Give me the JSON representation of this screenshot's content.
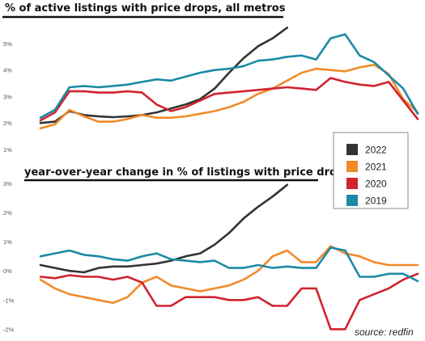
{
  "chart_data": [
    {
      "type": "line",
      "title": "% of active listings with price drops, all metros",
      "yticks": [
        "1%",
        "2%",
        "3%",
        "4%",
        "5%"
      ],
      "ylim": [
        1,
        5.7
      ],
      "xlim": [
        0,
        52
      ],
      "series": [
        {
          "name": "2022",
          "color": "#333333",
          "x": [
            0,
            2,
            4,
            6,
            8,
            10,
            12,
            14,
            16,
            18,
            20,
            22,
            24,
            26,
            28,
            30,
            32,
            34
          ],
          "y": [
            2.0,
            2.05,
            2.45,
            2.3,
            2.25,
            2.22,
            2.25,
            2.3,
            2.4,
            2.55,
            2.7,
            2.9,
            3.3,
            3.9,
            4.45,
            4.9,
            5.2,
            5.6
          ]
        },
        {
          "name": "2021",
          "color": "#f28a2a",
          "x": [
            0,
            2,
            4,
            6,
            8,
            10,
            12,
            14,
            16,
            18,
            20,
            22,
            24,
            26,
            28,
            30,
            32,
            34,
            36,
            38,
            40,
            42,
            44,
            46,
            48,
            50,
            52
          ],
          "y": [
            1.8,
            1.95,
            2.5,
            2.25,
            2.05,
            2.05,
            2.15,
            2.3,
            2.2,
            2.2,
            2.25,
            2.35,
            2.45,
            2.6,
            2.8,
            3.1,
            3.3,
            3.6,
            3.9,
            4.05,
            4.0,
            3.95,
            4.1,
            4.2,
            3.85,
            2.9,
            2.4
          ]
        },
        {
          "name": "2020",
          "color": "#d0232d",
          "x": [
            0,
            2,
            4,
            6,
            8,
            10,
            12,
            14,
            16,
            18,
            20,
            22,
            24,
            26,
            28,
            30,
            32,
            34,
            36,
            38,
            40,
            42,
            44,
            46,
            48,
            50,
            52
          ],
          "y": [
            2.1,
            2.4,
            3.2,
            3.2,
            3.15,
            3.15,
            3.2,
            3.15,
            2.7,
            2.45,
            2.6,
            2.85,
            3.1,
            3.15,
            3.2,
            3.25,
            3.3,
            3.35,
            3.3,
            3.25,
            3.7,
            3.55,
            3.45,
            3.4,
            3.55,
            2.85,
            2.15
          ]
        },
        {
          "name": "2019",
          "color": "#1b8aa6",
          "x": [
            0,
            2,
            4,
            6,
            8,
            10,
            12,
            14,
            16,
            18,
            20,
            22,
            24,
            26,
            28,
            30,
            32,
            34,
            36,
            38,
            40,
            42,
            44,
            46,
            48,
            50,
            52
          ],
          "y": [
            2.2,
            2.5,
            3.35,
            3.4,
            3.35,
            3.4,
            3.45,
            3.55,
            3.65,
            3.6,
            3.75,
            3.9,
            4.0,
            4.05,
            4.15,
            4.35,
            4.4,
            4.5,
            4.55,
            4.4,
            5.2,
            5.35,
            4.55,
            4.3,
            3.8,
            3.3,
            2.35
          ]
        }
      ]
    },
    {
      "type": "line",
      "title": "year-over-year change in % of listings with price drops",
      "yticks": [
        "-2%",
        "-1%",
        "0%",
        "1%",
        "2%",
        "3%"
      ],
      "ylim": [
        -2.1,
        3.0
      ],
      "xlim": [
        0,
        52
      ],
      "series": [
        {
          "name": "2022",
          "color": "#333333",
          "x": [
            0,
            2,
            4,
            6,
            8,
            10,
            12,
            14,
            16,
            18,
            20,
            22,
            24,
            26,
            28,
            30,
            32,
            34
          ],
          "y": [
            0.2,
            0.1,
            0.0,
            -0.05,
            0.1,
            0.15,
            0.15,
            0.2,
            0.25,
            0.35,
            0.5,
            0.6,
            0.9,
            1.3,
            1.8,
            2.2,
            2.55,
            2.95
          ]
        },
        {
          "name": "2021",
          "color": "#f28a2a",
          "x": [
            0,
            2,
            4,
            6,
            8,
            10,
            12,
            14,
            16,
            18,
            20,
            22,
            24,
            26,
            28,
            30,
            32,
            34,
            36,
            38,
            40,
            42,
            44,
            46,
            48,
            50,
            52
          ],
          "y": [
            -0.3,
            -0.6,
            -0.8,
            -0.9,
            -1.0,
            -1.1,
            -0.9,
            -0.4,
            -0.2,
            -0.5,
            -0.6,
            -0.7,
            -0.6,
            -0.5,
            -0.3,
            0.0,
            0.5,
            0.7,
            0.3,
            0.3,
            0.85,
            0.6,
            0.5,
            0.3,
            0.2,
            0.2,
            0.2
          ]
        },
        {
          "name": "2020",
          "color": "#d0232d",
          "x": [
            0,
            2,
            4,
            6,
            8,
            10,
            12,
            14,
            16,
            18,
            20,
            22,
            24,
            26,
            28,
            30,
            32,
            34,
            36,
            38,
            40,
            42,
            44,
            46,
            48,
            50,
            52
          ],
          "y": [
            -0.2,
            -0.25,
            -0.15,
            -0.2,
            -0.2,
            -0.3,
            -0.2,
            -0.4,
            -1.2,
            -1.2,
            -0.9,
            -0.9,
            -0.9,
            -1.0,
            -1.0,
            -0.9,
            -1.2,
            -1.2,
            -0.6,
            -0.6,
            -2.0,
            -2.0,
            -1.0,
            -0.8,
            -0.6,
            -0.3,
            -0.1
          ]
        },
        {
          "name": "2019",
          "color": "#1b8aa6",
          "x": [
            0,
            2,
            4,
            6,
            8,
            10,
            12,
            14,
            16,
            18,
            20,
            22,
            24,
            26,
            28,
            30,
            32,
            34,
            36,
            38,
            40,
            42,
            44,
            46,
            48,
            50,
            52
          ],
          "y": [
            0.5,
            0.6,
            0.7,
            0.55,
            0.5,
            0.4,
            0.35,
            0.5,
            0.6,
            0.4,
            0.35,
            0.3,
            0.35,
            0.1,
            0.1,
            0.2,
            0.1,
            0.15,
            0.1,
            0.1,
            0.8,
            0.7,
            -0.2,
            -0.2,
            -0.1,
            -0.1,
            -0.35
          ]
        }
      ]
    }
  ],
  "legend": [
    {
      "label": "2022",
      "color": "#333333"
    },
    {
      "label": "2021",
      "color": "#f28a2a"
    },
    {
      "label": "2020",
      "color": "#d0232d"
    },
    {
      "label": "2019",
      "color": "#1b8aa6"
    }
  ],
  "source": "source: redfin"
}
